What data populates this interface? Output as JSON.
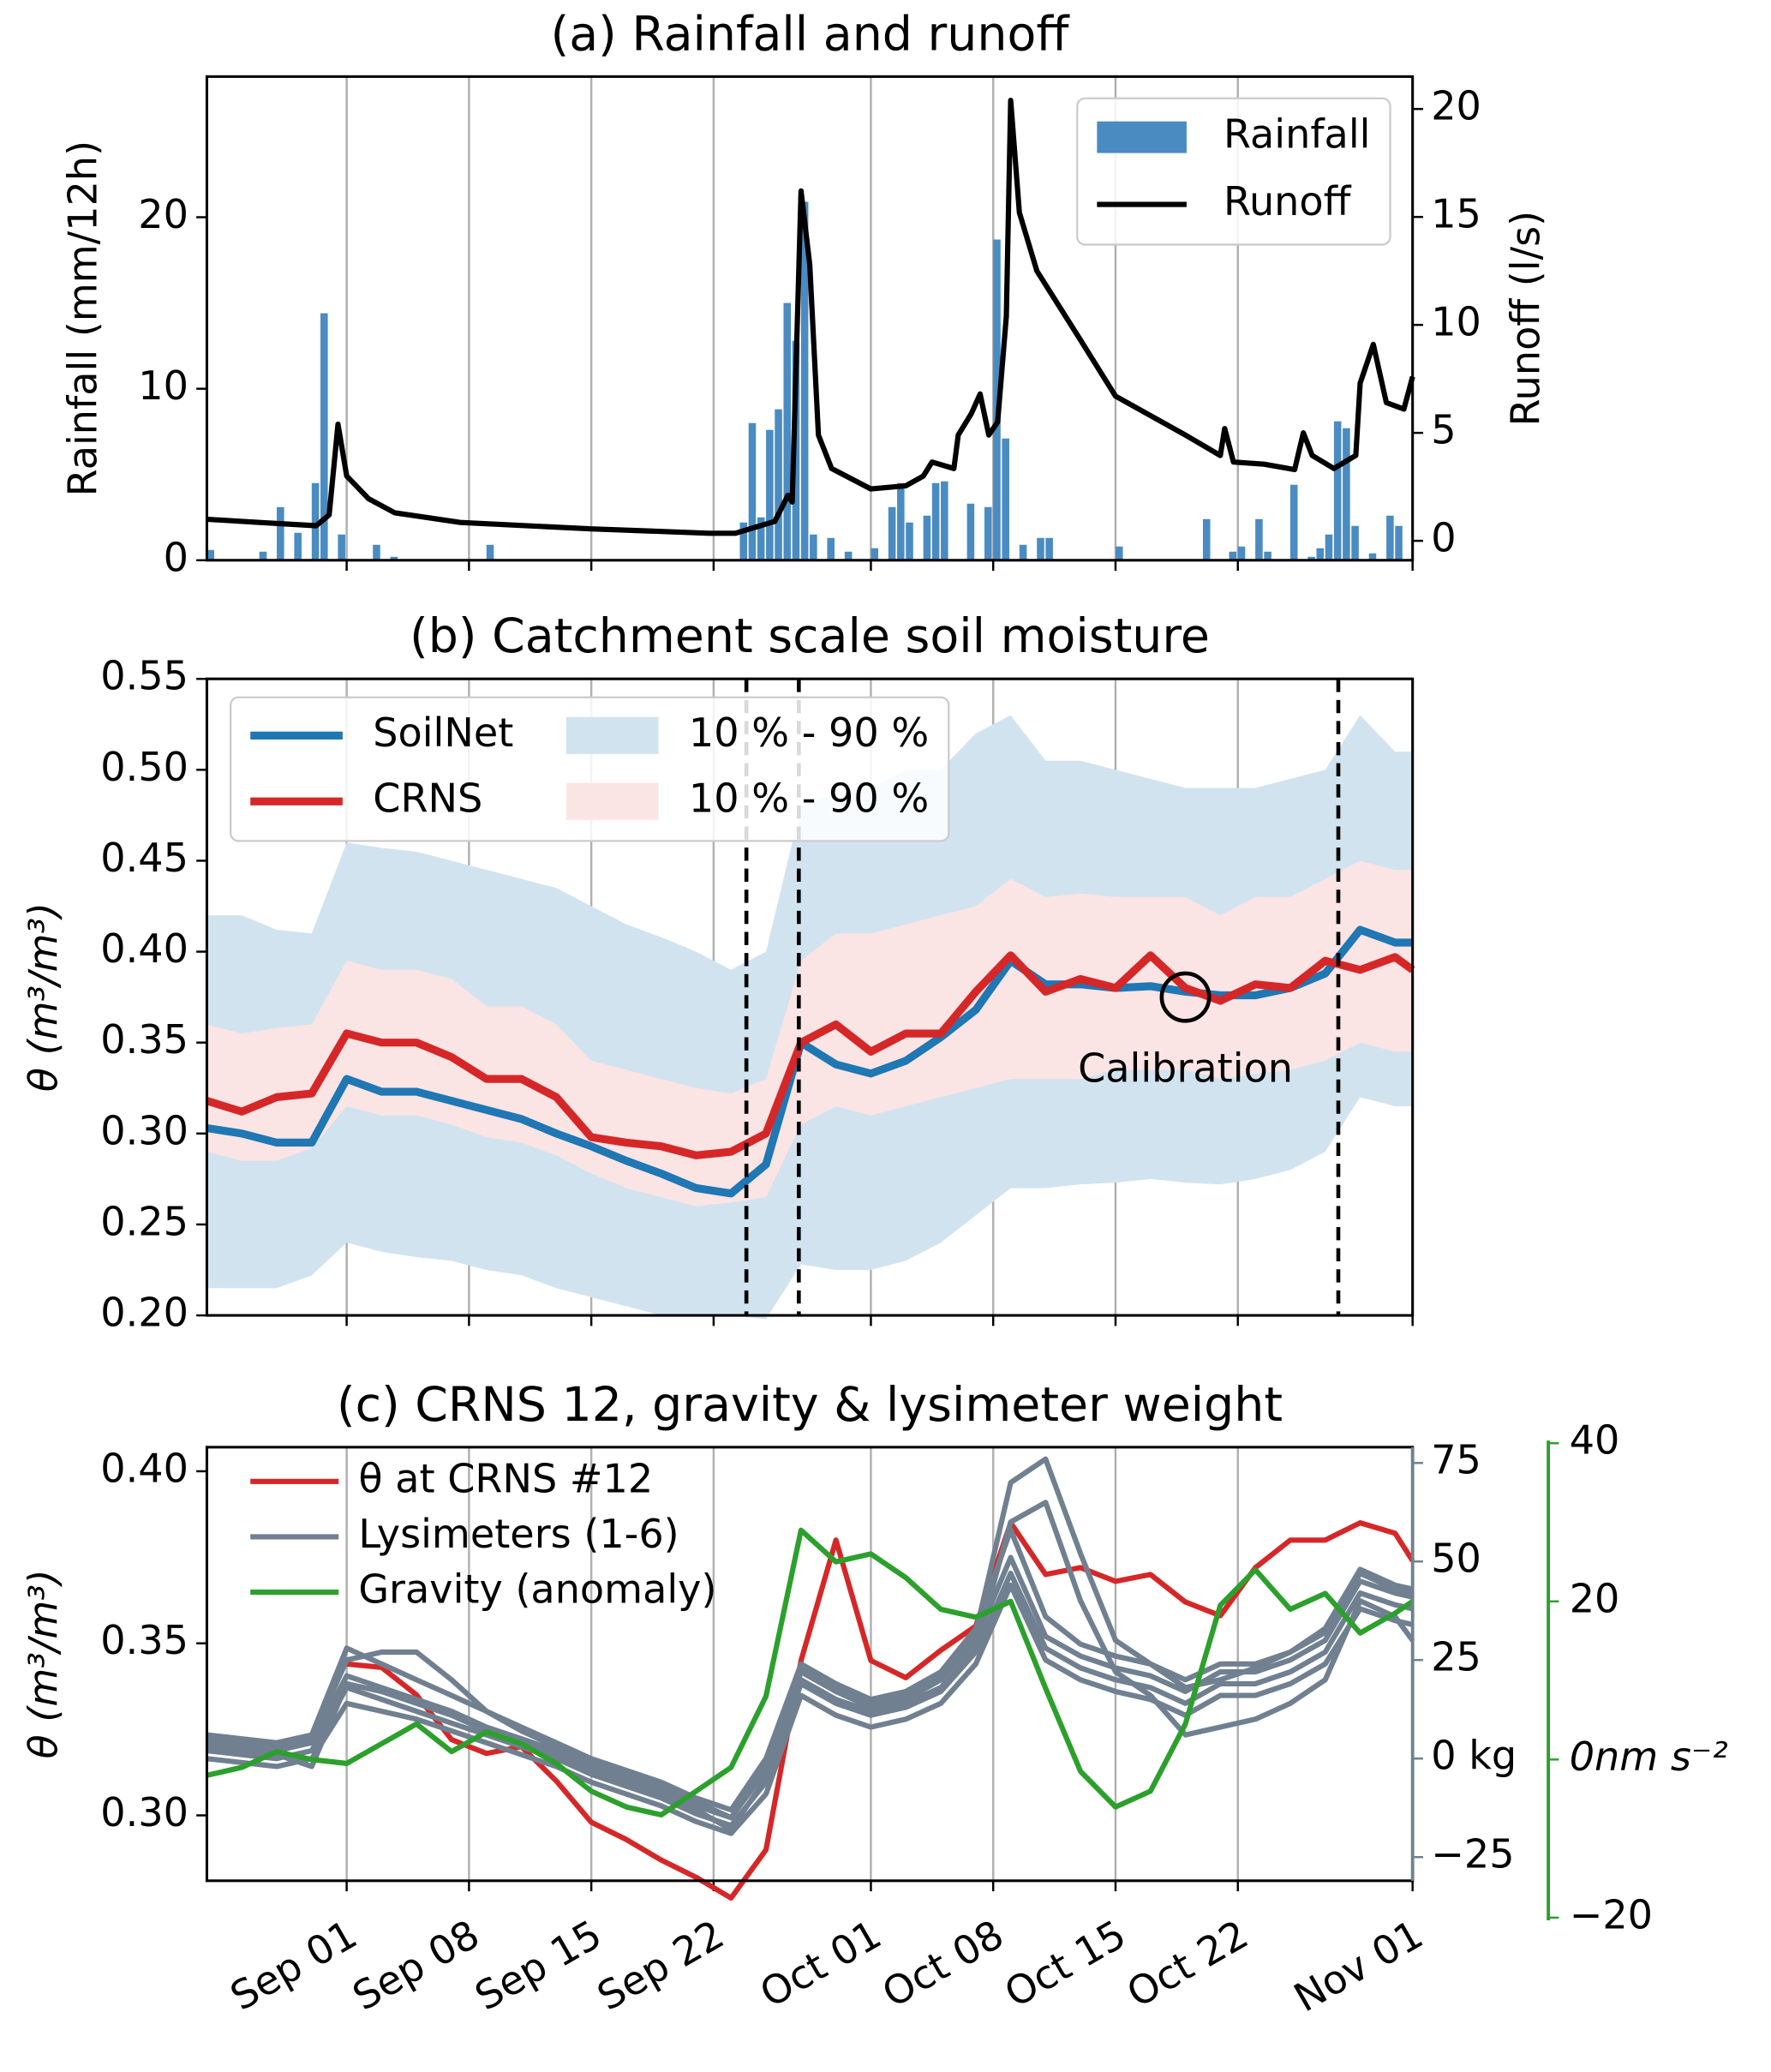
{
  "chart_data": [
    {
      "type": "bar",
      "title": "(a) Rainfall and runoff",
      "xlim": [
        "08-24",
        "11-01"
      ],
      "ylim": [
        0,
        28.2
      ],
      "yticks": [
        0,
        10,
        20
      ],
      "ylabel": "Rainfall (mm/12h)",
      "y2lim": [
        -0.9,
        21.5
      ],
      "y2ticks": [
        0,
        5,
        10,
        15,
        20
      ],
      "y2label": "Runoff (l/s)",
      "grid": true,
      "legend": "upper right",
      "legend_frame": true,
      "series": [
        {
          "name": "Rainfall",
          "type": "bar",
          "color": "#4a8bc2",
          "x": [
            "08-24 00",
            "08-27 00",
            "08-28 00",
            "08-29 00",
            "08-30 00",
            "08-30 12",
            "08-31 12",
            "09-02 12",
            "09-03 12",
            "09-09 00",
            "09-23 12",
            "09-24 00",
            "09-24 12",
            "09-25 00",
            "09-25 12",
            "09-26 00",
            "09-26 12",
            "09-27 00",
            "09-27 12",
            "09-28 12",
            "09-29 12",
            "10-01 00",
            "10-02 00",
            "10-02 12",
            "10-03 00",
            "10-04 00",
            "10-04 12",
            "10-05 00",
            "10-06 12",
            "10-07 12",
            "10-08 00",
            "10-08 12",
            "10-09 12",
            "10-10 12",
            "10-11 00",
            "10-15 00",
            "10-20 00",
            "10-21 12",
            "10-22 00",
            "10-23 00",
            "10-23 12",
            "10-25 00",
            "10-26 00",
            "10-26 12",
            "10-27 00",
            "10-27 12",
            "10-28 00",
            "10-28 12",
            "10-29 12",
            "10-30 12",
            "10-31 00"
          ],
          "values": [
            0.6,
            0.5,
            3.1,
            1.6,
            4.5,
            14.4,
            1.5,
            0.9,
            0.2,
            0.9,
            2.2,
            8.0,
            2.5,
            7.6,
            8.8,
            15.0,
            12.8,
            20.9,
            1.5,
            1.3,
            0.5,
            0.7,
            3.1,
            4.5,
            2.2,
            2.6,
            4.5,
            4.6,
            3.3,
            3.1,
            18.7,
            7.1,
            0.9,
            1.3,
            1.3,
            0.8,
            2.4,
            0.5,
            0.8,
            2.4,
            0.5,
            4.4,
            0.2,
            0.7,
            1.5,
            8.1,
            7.7,
            2.0,
            0.4,
            2.6,
            2.0
          ]
        },
        {
          "name": "Runoff",
          "type": "line",
          "axis": "y2",
          "color": "#000000",
          "x": [
            "08-24 00",
            "08-27 00",
            "08-30 06",
            "08-31 00",
            "08-31 12",
            "09-01 00",
            "09-02 06",
            "09-03 18",
            "09-07 12",
            "09-15 00",
            "09-21 18",
            "09-23 06",
            "09-25 12",
            "09-26 06",
            "09-26 12",
            "09-27 00",
            "09-27 12",
            "09-28 00",
            "09-28 18",
            "10-01 00",
            "10-03 00",
            "10-04 00",
            "10-04 12",
            "10-05 18",
            "10-06 00",
            "10-06 18",
            "10-07 06",
            "10-07 18",
            "10-08 06",
            "10-08 18",
            "10-09 00",
            "10-09 12",
            "10-10 12",
            "10-13 00",
            "10-15 00",
            "10-19 00",
            "10-21 00",
            "10-21 06",
            "10-21 18",
            "10-23 12",
            "10-25 06",
            "10-25 18",
            "10-26 06",
            "10-27 12",
            "10-28 18",
            "10-29 00",
            "10-29 18",
            "10-30 12",
            "10-31 12",
            "11-01 00"
          ],
          "values": [
            1.0,
            0.85,
            0.7,
            1.2,
            5.4,
            3.0,
            1.95,
            1.3,
            0.85,
            0.55,
            0.35,
            0.35,
            0.9,
            2.1,
            1.8,
            16.2,
            12.8,
            4.9,
            3.35,
            2.4,
            2.55,
            3.0,
            3.65,
            3.35,
            4.9,
            5.9,
            6.8,
            4.9,
            5.5,
            10.4,
            20.4,
            15.2,
            12.5,
            9.3,
            6.7,
            4.9,
            3.95,
            5.2,
            3.65,
            3.55,
            3.3,
            5.0,
            3.95,
            3.35,
            3.95,
            7.3,
            9.1,
            6.4,
            6.1,
            7.6
          ]
        }
      ]
    },
    {
      "type": "line",
      "title": "(b) Catchment scale soil moisture",
      "xlim": [
        "08-24",
        "11-01"
      ],
      "x": [
        "08-24",
        "08-26",
        "08-28",
        "08-30",
        "09-01",
        "09-03",
        "09-05",
        "09-07",
        "09-09",
        "09-11",
        "09-13",
        "09-15",
        "09-17",
        "09-19",
        "09-21",
        "09-23",
        "09-25",
        "09-27",
        "09-29",
        "10-01",
        "10-03",
        "10-05",
        "10-07",
        "10-09",
        "10-11",
        "10-13",
        "10-15",
        "10-17",
        "10-19",
        "10-21",
        "10-23",
        "10-25",
        "10-27",
        "10-29",
        "10-31",
        "11-01"
      ],
      "ylim": [
        0.2,
        0.55
      ],
      "yticks": [
        {
          "value": 0.2,
          "label": "0.20"
        },
        0.25,
        {
          "value": 0.3,
          "label": "0.30"
        },
        0.35,
        {
          "value": 0.4,
          "label": "0.40"
        },
        0.45,
        {
          "value": 0.5,
          "label": "0.50"
        },
        0.55
      ],
      "ylabel": "θ (m³/m³)",
      "grid": true,
      "legend": "upper left",
      "legend_ncol": 2,
      "legend_frame": true,
      "vlines": [
        "09-23 21",
        "09-26 21",
        "10-27 18"
      ],
      "annotation": {
        "text": "Calibration",
        "x": "10-19",
        "y": 0.375
      },
      "series": [
        {
          "name": "SoilNet",
          "type": "line",
          "color": "#1f77b4",
          "values": [
            0.303,
            0.3,
            0.295,
            0.295,
            0.33,
            0.323,
            0.323,
            0.318,
            0.313,
            0.308,
            0.3,
            0.293,
            0.285,
            0.278,
            0.27,
            0.267,
            0.283,
            0.35,
            0.338,
            0.333,
            0.34,
            0.353,
            0.368,
            0.395,
            0.382,
            0.382,
            0.38,
            0.381,
            0.378,
            0.376,
            0.376,
            0.38,
            0.388,
            0.412,
            0.405,
            0.405
          ]
        },
        {
          "name": "CRNS",
          "type": "line",
          "color": "#d62728",
          "values": [
            0.318,
            0.312,
            0.32,
            0.322,
            0.355,
            0.35,
            0.35,
            0.342,
            0.33,
            0.33,
            0.32,
            0.298,
            0.295,
            0.293,
            0.288,
            0.29,
            0.3,
            0.35,
            0.36,
            0.345,
            0.355,
            0.355,
            0.378,
            0.398,
            0.378,
            0.385,
            0.38,
            0.398,
            0.38,
            0.373,
            0.382,
            0.38,
            0.395,
            0.39,
            0.397,
            0.39
          ]
        },
        {
          "name": "10 % - 90 %",
          "type": "band",
          "color": "#d2e3f0",
          "lower": [
            0.215,
            0.215,
            0.215,
            0.222,
            0.24,
            0.235,
            0.232,
            0.23,
            0.225,
            0.222,
            0.215,
            0.21,
            0.205,
            0.2,
            0.2,
            0.2,
            0.198,
            0.228,
            0.225,
            0.225,
            0.23,
            0.24,
            0.255,
            0.27,
            0.27,
            0.272,
            0.273,
            0.275,
            0.273,
            0.272,
            0.275,
            0.28,
            0.29,
            0.32,
            0.315,
            0.315
          ],
          "upper": [
            0.42,
            0.42,
            0.412,
            0.41,
            0.46,
            0.457,
            0.455,
            0.45,
            0.445,
            0.44,
            0.435,
            0.425,
            0.415,
            0.408,
            0.4,
            0.39,
            0.4,
            0.48,
            0.487,
            0.49,
            0.5,
            0.5,
            0.52,
            0.53,
            0.505,
            0.505,
            0.5,
            0.495,
            0.49,
            0.49,
            0.49,
            0.495,
            0.5,
            0.53,
            0.51,
            0.51
          ]
        },
        {
          "name": "10 % - 90 %",
          "type": "band",
          "color": "#fbe4e4",
          "lower": [
            0.29,
            0.285,
            0.285,
            0.292,
            0.315,
            0.31,
            0.31,
            0.305,
            0.298,
            0.295,
            0.288,
            0.278,
            0.27,
            0.265,
            0.26,
            0.262,
            0.265,
            0.305,
            0.315,
            0.31,
            0.315,
            0.32,
            0.325,
            0.33,
            0.33,
            0.33,
            0.335,
            0.335,
            0.335,
            0.33,
            0.333,
            0.335,
            0.34,
            0.35,
            0.345,
            0.345
          ],
          "upper": [
            0.36,
            0.355,
            0.358,
            0.36,
            0.395,
            0.39,
            0.39,
            0.385,
            0.37,
            0.37,
            0.36,
            0.34,
            0.335,
            0.33,
            0.325,
            0.322,
            0.33,
            0.395,
            0.41,
            0.41,
            0.415,
            0.42,
            0.425,
            0.44,
            0.43,
            0.432,
            0.43,
            0.43,
            0.43,
            0.42,
            0.43,
            0.43,
            0.44,
            0.45,
            0.445,
            0.445
          ]
        }
      ]
    },
    {
      "type": "line",
      "title": "(c) CRNS 12, gravity & lysimeter weight",
      "xlim": [
        "08-24",
        "11-01"
      ],
      "x": [
        "08-24",
        "08-26",
        "08-28",
        "08-30",
        "09-01",
        "09-03",
        "09-05",
        "09-07",
        "09-09",
        "09-11",
        "09-13",
        "09-15",
        "09-17",
        "09-19",
        "09-21",
        "09-23",
        "09-25",
        "09-27",
        "09-29",
        "10-01",
        "10-03",
        "10-05",
        "10-07",
        "10-09",
        "10-11",
        "10-13",
        "10-15",
        "10-17",
        "10-19",
        "10-21",
        "10-23",
        "10-25",
        "10-27",
        "10-29",
        "10-31",
        "11-01"
      ],
      "xticks": [
        {
          "value": "09-01",
          "label": "Sep 01"
        },
        {
          "value": "09-08",
          "label": "Sep 08"
        },
        {
          "value": "09-15",
          "label": "Sep 15"
        },
        {
          "value": "09-22",
          "label": "Sep 22"
        },
        {
          "value": "10-01",
          "label": "Oct 01"
        },
        {
          "value": "10-08",
          "label": "Oct 08"
        },
        {
          "value": "10-15",
          "label": "Oct 15"
        },
        {
          "value": "10-22",
          "label": "Oct 22"
        },
        {
          "value": "11-01",
          "label": "Nov 01"
        }
      ],
      "ylim": [
        0.281,
        0.407
      ],
      "yticks": [
        {
          "value": 0.3,
          "label": "0.30"
        },
        0.35,
        {
          "value": 0.4,
          "label": "0.40"
        }
      ],
      "ylabel": "θ (m³/m³)",
      "ycolor": "#d62728",
      "y2lim": [
        -31,
        79
      ],
      "y2ticks": [
        {
          "value": -25,
          "label": "−25"
        },
        {
          "value": 0,
          "label": "0 kg"
        },
        25,
        50,
        75
      ],
      "y2color": "#708090",
      "y3lim": [
        -20,
        40
      ],
      "y3ticks": [
        {
          "value": -20,
          "label": "−20"
        },
        {
          "value": 0,
          "label": "0nm s⁻²"
        },
        20,
        40
      ],
      "y3color": "#2ca02c",
      "grid": true,
      "legend": "upper left",
      "legend_frame": false,
      "series": [
        {
          "name": "θ at CRNS #12",
          "type": "line",
          "color": "#d62728",
          "values": [
            null,
            null,
            null,
            null,
            0.344,
            0.343,
            0.335,
            0.322,
            0.318,
            0.32,
            0.31,
            0.298,
            0.293,
            0.287,
            0.282,
            0.276,
            0.29,
            0.345,
            0.38,
            0.345,
            0.34,
            0.348,
            0.355,
            0.385,
            0.37,
            0.372,
            0.368,
            0.37,
            0.362,
            0.358,
            0.372,
            0.38,
            0.38,
            0.385,
            0.382,
            0.374
          ]
        },
        {
          "name": "Lysimeters (1-6)",
          "type": "line",
          "axis": "y2",
          "color": "#708090",
          "values": [
            4,
            3,
            2,
            4,
            21,
            18,
            15,
            12,
            8,
            5,
            2,
            -2,
            -5,
            -8,
            -12,
            -15,
            -3,
            22,
            17,
            13,
            15,
            20,
            30,
            51,
            31,
            26,
            23,
            21,
            17,
            22,
            22,
            25,
            30,
            45,
            42,
            41
          ]
        },
        {
          "type": "line",
          "axis": "y2",
          "color": "#708090",
          "values": [
            6,
            5,
            4,
            6,
            28,
            24,
            20,
            16,
            12,
            8,
            4,
            0,
            -3,
            -6,
            -10,
            -13,
            0,
            24,
            19,
            15,
            17,
            22,
            33,
            58,
            36,
            29,
            26,
            24,
            20,
            24,
            24,
            27,
            33,
            48,
            44,
            43
          ]
        },
        {
          "type": "line",
          "axis": "y2",
          "color": "#708090",
          "values": [
            2,
            1,
            0,
            2,
            18,
            15,
            12,
            9,
            6,
            3,
            0,
            -4,
            -7,
            -10,
            -14,
            -17,
            -6,
            19,
            14,
            11,
            13,
            17,
            27,
            47,
            28,
            23,
            20,
            18,
            14,
            19,
            19,
            22,
            27,
            42,
            39,
            38
          ]
        },
        {
          "type": "line",
          "axis": "y2",
          "color": "#708090",
          "values": [
            0,
            -1,
            -2,
            0,
            14,
            12,
            10,
            7,
            4,
            1,
            -2,
            -6,
            -9,
            -12,
            -16,
            -19,
            -9,
            16,
            11,
            8,
            10,
            14,
            24,
            44,
            25,
            20,
            17,
            15,
            11,
            16,
            16,
            19,
            24,
            38,
            35,
            34
          ]
        },
        {
          "type": "line",
          "axis": "y2",
          "color": "#708090",
          "values": [
            5,
            4,
            3,
            5,
            25,
            27,
            27,
            20,
            12,
            7,
            3,
            -1,
            -4,
            -7,
            -11,
            -15,
            -2,
            23,
            18,
            14,
            16,
            21,
            32,
            70,
            76,
            52,
            30,
            24,
            18,
            20,
            23,
            27,
            32,
            47,
            43,
            42
          ]
        },
        {
          "type": "line",
          "axis": "y2",
          "color": "#708090",
          "values": [
            3,
            2,
            1,
            -2,
            19,
            17,
            14,
            11,
            7,
            4,
            1,
            -3,
            -6,
            -9,
            -13,
            -18,
            -5,
            20,
            15,
            12,
            14,
            18,
            28,
            60,
            65,
            40,
            22,
            16,
            6,
            8,
            10,
            14,
            20,
            40,
            36,
            30
          ]
        },
        {
          "name": "Gravity (anomaly)",
          "type": "line",
          "axis": "y3",
          "color": "#2ca02c",
          "values": [
            -2,
            -1,
            1,
            0,
            -0.5,
            2,
            4.5,
            1,
            3.5,
            2,
            -0.5,
            -4,
            -6,
            -7,
            -4,
            -1,
            8,
            29,
            25,
            26,
            23,
            19,
            18,
            20,
            9,
            -1.5,
            -6,
            -4,
            4.5,
            19.5,
            24,
            19,
            21,
            16,
            18.5,
            20
          ]
        }
      ]
    }
  ]
}
